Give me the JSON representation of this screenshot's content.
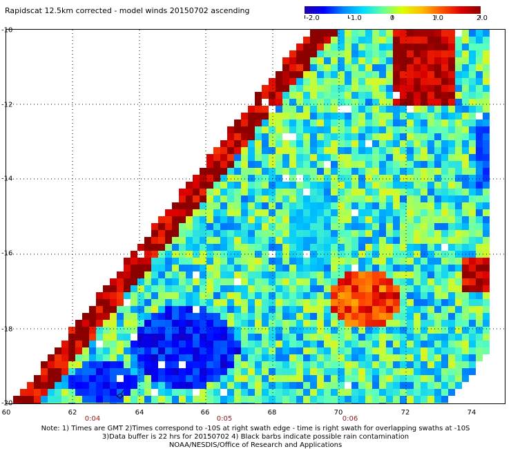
{
  "title": "Rapidscat 12.5km corrected - model winds 20150702 ascending",
  "colorbar": {
    "labels": [
      "-2.0",
      "-1.0",
      "0",
      "1.0",
      "2.0"
    ],
    "colors": [
      "#2200aa",
      "#0000ff",
      "#0088ff",
      "#00ddff",
      "#66ff99",
      "#ddff00",
      "#ffbb00",
      "#ff5500",
      "#dd0000",
      "#8b0000"
    ]
  },
  "y_labels": [
    "-10",
    "-12",
    "-14",
    "-16",
    "-18",
    "-20"
  ],
  "x_labels": [
    "60",
    "62",
    "64",
    "66",
    "68",
    "70",
    "72",
    "74"
  ],
  "time_labels": [
    "0:04",
    "0:05",
    "0:06"
  ],
  "notes": [
    "Note: 1) Times are GMT 2)Times correspond to -10S at right swath edge - time is right swath for overlapping swaths at -10S",
    "3)Data buffer is 22 hrs for 20150702 4) Black barbs indicate possible rain contamination",
    "NOAA/NESDIS/Office of Research and Applications"
  ]
}
